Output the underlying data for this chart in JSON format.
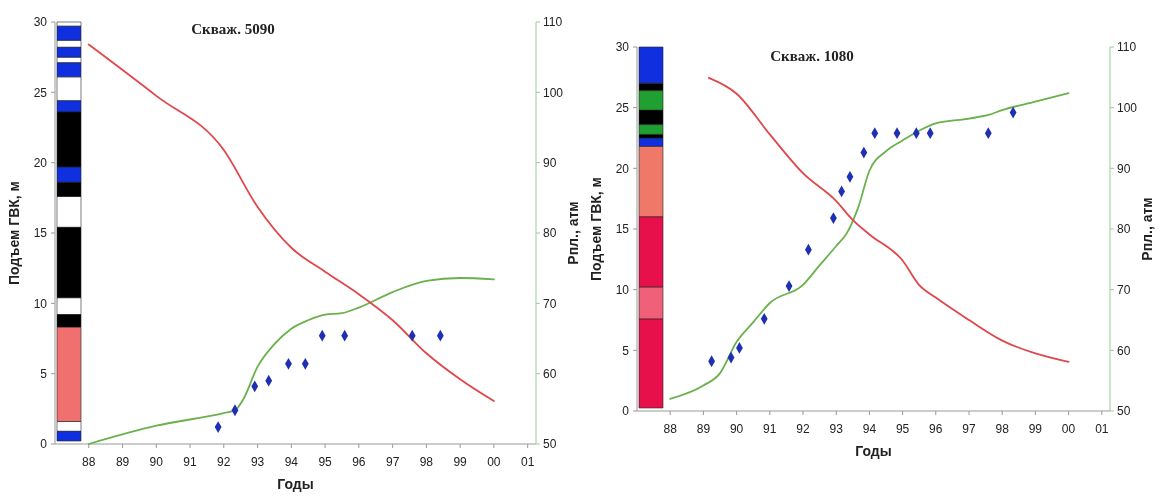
{
  "chart_data": [
    {
      "type": "line",
      "title": "Скваж. 5090",
      "xlabel": "Годы",
      "ylabel": "Подъем ГВК, м",
      "y2label": "Рпл., атм",
      "xlim": [
        "1987-01",
        "2001-04"
      ],
      "xticks": [
        {
          "value": "1988",
          "label": "88"
        },
        {
          "value": "1989",
          "label": "89"
        },
        {
          "value": "1990",
          "label": "90"
        },
        {
          "value": "1991",
          "label": "91"
        },
        {
          "value": "1992",
          "label": "92"
        },
        {
          "value": "1993",
          "label": "93"
        },
        {
          "value": "1994",
          "label": "94"
        },
        {
          "value": "1995",
          "label": "95"
        },
        {
          "value": "1996",
          "label": "96"
        },
        {
          "value": "1997",
          "label": "97"
        },
        {
          "value": "1998",
          "label": "98"
        },
        {
          "value": "1999",
          "label": "99"
        },
        {
          "value": "2000",
          "label": "00"
        },
        {
          "value": "2001",
          "label": "01"
        }
      ],
      "ylim": [
        0,
        30
      ],
      "yticks": [
        0,
        5,
        10,
        15,
        20,
        25,
        30
      ],
      "y2lim": [
        50,
        110
      ],
      "y2ticks": [
        50,
        60,
        70,
        80,
        90,
        100,
        110
      ],
      "series": [
        {
          "type": "line",
          "color": "#6ab04c",
          "marker": "none",
          "x": [
            "1988-01",
            "1990-01",
            "1992-01",
            "1992-05",
            "1992-08",
            "1993-01",
            "1993-07",
            "1994-01",
            "1994-07",
            "1995-01",
            "1995-07",
            "1996-01",
            "1997-01",
            "1998-01",
            "1999-01",
            "2000-01"
          ],
          "values": [
            0,
            1.3,
            2.2,
            2.4,
            3.2,
            5.5,
            7.1,
            8.2,
            8.8,
            9.2,
            9.3,
            9.7,
            10.8,
            11.6,
            11.8,
            11.7
          ]
        },
        {
          "type": "line",
          "color": "#e0474c",
          "marker": "none",
          "axis": "y2",
          "x": [
            "1988-01",
            "1990-01",
            "1992-01",
            "1993-01",
            "1994-01",
            "1995-01",
            "1996-01",
            "1997-01",
            "1998-01",
            "1999-01",
            "2000-01"
          ],
          "values": [
            106.8,
            99.5,
            91.8,
            83.7,
            77.9,
            74.5,
            71.3,
            67.6,
            62.9,
            59.2,
            56.1
          ]
        },
        {
          "type": "scatter",
          "color": "#1f2fb4",
          "marker": "diamond",
          "x": [
            "1991-11",
            "1992-05",
            "1992-12",
            "1993-05",
            "1993-12",
            "1994-06",
            "1994-12",
            "1995-08",
            "1997-08",
            "1998-06"
          ],
          "values": [
            1.2,
            2.4,
            4.1,
            4.5,
            5.7,
            5.7,
            7.7,
            7.7,
            7.7,
            7.7
          ]
        }
      ]
    },
    {
      "type": "line",
      "title": "Скваж. 1080",
      "xlabel": "Годы",
      "ylabel": "Подъем ГВК, м",
      "y2label": "Рпл., атм",
      "xlim": [
        "1987-01",
        "2001-04"
      ],
      "xticks": [
        {
          "value": "1988",
          "label": "88"
        },
        {
          "value": "1989",
          "label": "89"
        },
        {
          "value": "1990",
          "label": "90"
        },
        {
          "value": "1991",
          "label": "91"
        },
        {
          "value": "1992",
          "label": "92"
        },
        {
          "value": "1993",
          "label": "93"
        },
        {
          "value": "1994",
          "label": "94"
        },
        {
          "value": "1995",
          "label": "95"
        },
        {
          "value": "1996",
          "label": "96"
        },
        {
          "value": "1997",
          "label": "97"
        },
        {
          "value": "1998",
          "label": "98"
        },
        {
          "value": "1999",
          "label": "99"
        },
        {
          "value": "2000",
          "label": "00"
        },
        {
          "value": "2001",
          "label": "01"
        }
      ],
      "ylim": [
        0,
        30
      ],
      "yticks": [
        0,
        5,
        10,
        15,
        20,
        25,
        30
      ],
      "y2lim": [
        50,
        110
      ],
      "y2ticks": [
        50,
        60,
        70,
        80,
        90,
        100,
        110
      ],
      "series": [
        {
          "type": "line",
          "color": "#6ab04c",
          "marker": "none",
          "x": [
            "1988-01",
            "1989-01",
            "1989-07",
            "1990-01",
            "1990-07",
            "1991-01",
            "1992-01",
            "1992-07",
            "1993-01",
            "1993-05",
            "1993-09",
            "1994-01",
            "1994-07",
            "1995-01",
            "1995-07",
            "1996-01",
            "1997-01",
            "1997-08",
            "1998-01",
            "1999-01",
            "2000-01"
          ],
          "values": [
            1.0,
            2.1,
            3.1,
            5.7,
            7.3,
            8.9,
            10.4,
            12.0,
            13.6,
            14.7,
            16.8,
            19.8,
            21.4,
            22.3,
            23.1,
            23.7,
            24.1,
            24.4,
            24.8,
            25.5,
            26.2
          ]
        },
        {
          "type": "line",
          "color": "#e0474c",
          "marker": "none",
          "axis": "y2",
          "x": [
            "1989-03",
            "1990-01",
            "1991-01",
            "1992-01",
            "1993-01",
            "1993-07",
            "1994-01",
            "1995-01",
            "1995-07",
            "1996-01",
            "1997-01",
            "1998-01",
            "1999-01",
            "2000-01"
          ],
          "values": [
            104.9,
            102.3,
            95.6,
            89.2,
            84.6,
            81.5,
            79.1,
            74.8,
            70.8,
            68.7,
            65.0,
            61.6,
            59.5,
            58.1
          ]
        },
        {
          "type": "scatter",
          "color": "#1f2fb4",
          "marker": "diamond",
          "x": [
            "1989-04",
            "1989-11",
            "1990-02",
            "1990-11",
            "1991-08",
            "1992-03",
            "1992-12",
            "1993-03",
            "1993-06",
            "1993-11",
            "1994-03",
            "1994-11",
            "1995-06",
            "1995-11",
            "1997-08",
            "1998-05"
          ],
          "values": [
            4.1,
            4.4,
            5.2,
            7.6,
            10.3,
            13.3,
            15.9,
            18.1,
            19.3,
            21.3,
            22.9,
            22.9,
            22.9,
            22.9,
            22.9,
            24.6
          ]
        }
      ]
    }
  ]
}
